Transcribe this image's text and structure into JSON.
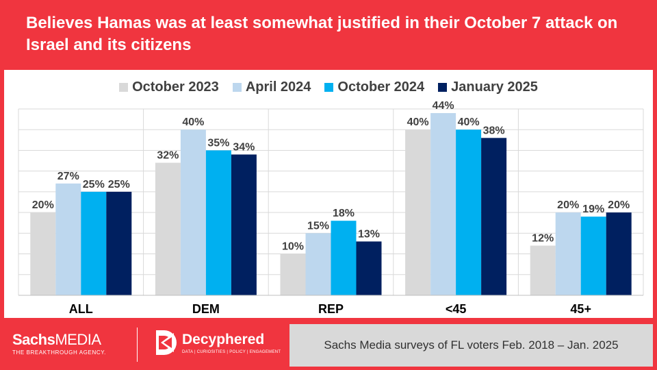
{
  "title": "Believes Hamas was at least somewhat justified in their October 7 attack on Israel and its citizens",
  "chart_data": {
    "type": "bar",
    "categories": [
      "ALL",
      "DEM",
      "REP",
      "<45",
      "45+"
    ],
    "series": [
      {
        "name": "October 2023",
        "color": "#d9d9d9",
        "values": [
          20,
          32,
          10,
          40,
          12
        ]
      },
      {
        "name": "April 2024",
        "color": "#bdd7ee",
        "values": [
          27,
          40,
          15,
          44,
          20
        ]
      },
      {
        "name": "October 2024",
        "color": "#00b0f0",
        "values": [
          25,
          35,
          18,
          40,
          19
        ]
      },
      {
        "name": "January 2025",
        "color": "#002060",
        "values": [
          25,
          34,
          13,
          38,
          20
        ]
      }
    ],
    "value_suffix": "%",
    "ylim": [
      0,
      45
    ],
    "grid_step": 5,
    "legend_position": "top"
  },
  "footer": {
    "logo_left_main": "Sachs",
    "logo_left_accent": "MEDIA",
    "logo_left_tagline": "THE BREAKTHROUGH AGENCY.",
    "logo_right_name": "Decyphered",
    "logo_right_tagline": "DATA | CURIOSITIES | POLICY | ENGAGEMENT",
    "source": "Sachs Media surveys of FL voters Feb. 2018 – Jan. 2025"
  }
}
